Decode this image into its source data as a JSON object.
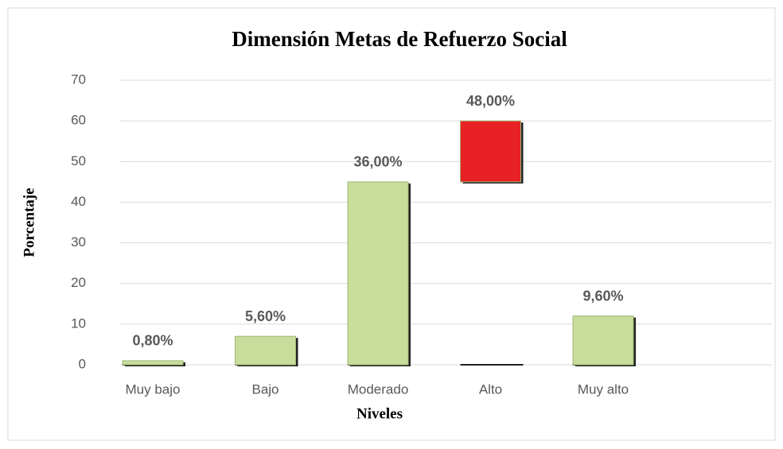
{
  "chart_data": {
    "type": "bar",
    "title": "Dimensión Metas de Refuerzo Social",
    "x_label": "Niveles",
    "y_label": "Porcentaje",
    "categories": [
      "Muy bajo",
      "Bajo",
      "Moderado",
      "Alto",
      "Muy alto"
    ],
    "values": [
      1,
      7,
      45,
      60,
      12
    ],
    "bottoms": [
      0,
      0,
      0,
      45,
      0
    ],
    "value_labels": [
      "0,80%",
      "5,60%",
      "36,00%",
      "48,00%",
      "9,60%"
    ],
    "colors": [
      "#c8dc9c",
      "#c8dc9c",
      "#c8dc9c",
      "#e82124",
      "#c8dc9c"
    ],
    "ylim": [
      0,
      70
    ],
    "yticks": [
      0,
      10,
      20,
      30,
      40,
      50,
      60,
      70
    ],
    "grid": true
  }
}
